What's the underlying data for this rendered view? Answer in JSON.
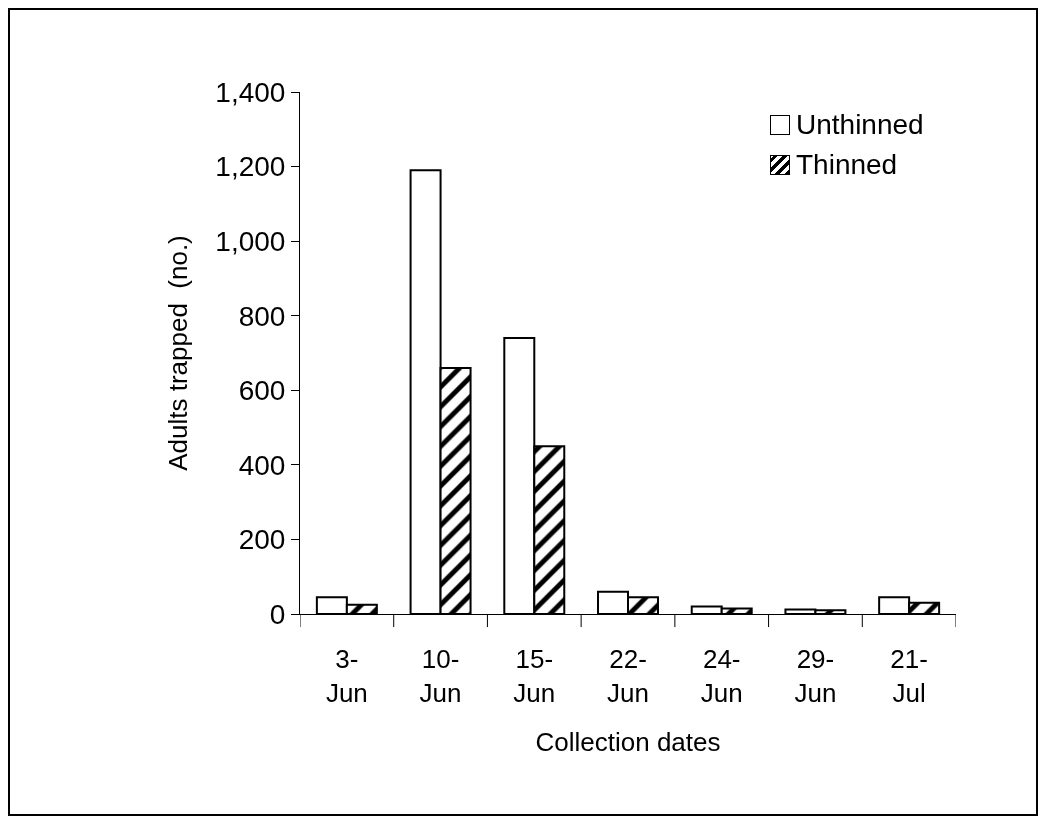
{
  "chart_data": {
    "type": "bar",
    "xlabel": "Collection dates",
    "ylabel": "Adults trapped  (no.)",
    "categories": [
      "3-Jun",
      "10-Jun",
      "15-Jun",
      "22-Jun",
      "24-Jun",
      "29-Jun",
      "21-Jul"
    ],
    "series": [
      {
        "name": "Unthinned",
        "color": "#ffffff",
        "values": [
          45,
          1190,
          740,
          60,
          20,
          12,
          45
        ]
      },
      {
        "name": "Thinned",
        "color": "#000000",
        "values": [
          25,
          660,
          450,
          45,
          15,
          10,
          30
        ]
      }
    ],
    "ylim": [
      0,
      1400
    ],
    "yticks": [
      0,
      {
        "value": 200,
        "label": "200"
      },
      {
        "value": 400,
        "label": "400"
      },
      {
        "value": 600,
        "label": "600"
      },
      {
        "value": 800,
        "label": "800"
      },
      {
        "value": 1000,
        "label": "1,000"
      },
      {
        "value": 1200,
        "label": "1,200"
      },
      {
        "value": 1400,
        "label": "1,400"
      }
    ],
    "grid": false,
    "legend": "top right"
  }
}
